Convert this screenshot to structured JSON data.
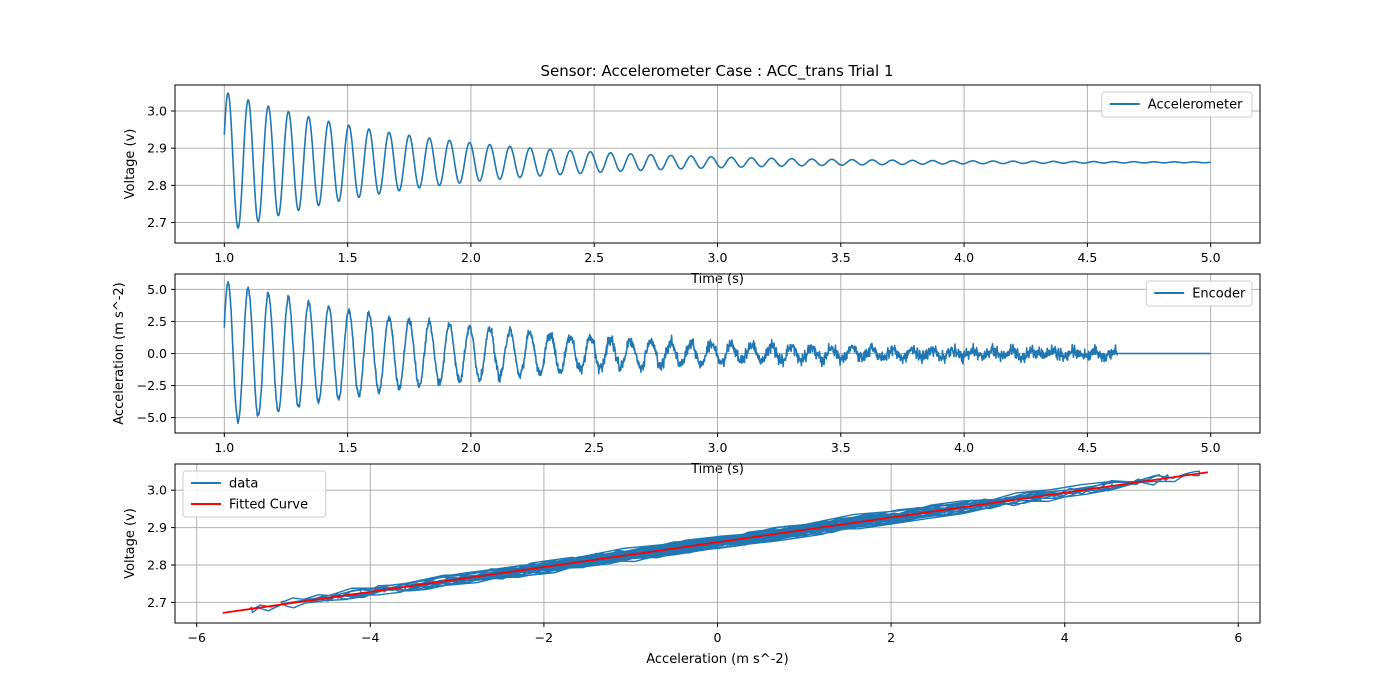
{
  "title": "Sensor: Accelerometer Case : ACC_trans Trial 1",
  "colors": {
    "series_blue": "#1f77b4",
    "fit_red": "#ff0000",
    "grid": "#b0b0b0",
    "legend_border": "#cccccc"
  },
  "chart_data": [
    {
      "type": "line",
      "title": "Sensor: Accelerometer Case : ACC_trans Trial 1",
      "xlabel": "Time (s)",
      "ylabel": "Voltage (v)",
      "xlim": [
        0.8,
        5.2
      ],
      "ylim": [
        2.645,
        3.07
      ],
      "xticks": [
        1.0,
        1.5,
        2.0,
        2.5,
        3.0,
        3.5,
        4.0,
        4.5,
        5.0
      ],
      "xtick_labels": [
        "1.0",
        "1.5",
        "2.0",
        "2.5",
        "3.0",
        "3.5",
        "4.0",
        "4.5",
        "5.0"
      ],
      "yticks": [
        2.7,
        2.8,
        2.9,
        3.0
      ],
      "ytick_labels": [
        "2.7",
        "2.8",
        "2.9",
        "3.0"
      ],
      "grid": true,
      "legend_position": "upper right",
      "series": [
        {
          "name": "Accelerometer",
          "signal": {
            "x_start": 1.0,
            "x_end": 5.0,
            "offset": 2.862,
            "amplitude": 0.19,
            "frequency_hz": 12.25,
            "decay_time_s": 0.78,
            "phase_rad": 0.4
          }
        }
      ]
    },
    {
      "type": "line",
      "xlabel": "Time (s)",
      "ylabel": "Acceleration (m s^-2)",
      "xlim": [
        0.8,
        5.2
      ],
      "ylim": [
        -6.2,
        6.2
      ],
      "xticks": [
        1.0,
        1.5,
        2.0,
        2.5,
        3.0,
        3.5,
        4.0,
        4.5,
        5.0
      ],
      "xtick_labels": [
        "1.0",
        "1.5",
        "2.0",
        "2.5",
        "3.0",
        "3.5",
        "4.0",
        "4.5",
        "5.0"
      ],
      "yticks": [
        -5.0,
        -2.5,
        0.0,
        2.5,
        5.0
      ],
      "ytick_labels": [
        "−5.0",
        "−2.5",
        "0.0",
        "2.5",
        "5.0"
      ],
      "grid": true,
      "legend_position": "upper right",
      "series": [
        {
          "name": "Encoder",
          "signal": {
            "x_start": 1.0,
            "x_end": 5.0,
            "signal_end": 4.62,
            "offset": 0.0,
            "amplitude": 5.6,
            "frequency_hz": 12.25,
            "decay_time_s": 1.0,
            "phase_rad": 0.4,
            "noise_amplitude": 0.55
          }
        }
      ]
    },
    {
      "type": "scatter",
      "xlabel": "Acceleration (m s^-2)",
      "ylabel": "Voltage (v)",
      "xlim": [
        -6.25,
        6.25
      ],
      "ylim": [
        2.645,
        3.07
      ],
      "xticks": [
        -6,
        -4,
        -2,
        0,
        2,
        4,
        6
      ],
      "xtick_labels": [
        "−6",
        "−4",
        "−2",
        "0",
        "2",
        "4",
        "6"
      ],
      "yticks": [
        2.7,
        2.8,
        2.9,
        3.0
      ],
      "ytick_labels": [
        "2.7",
        "2.8",
        "2.9",
        "3.0"
      ],
      "grid": true,
      "legend_position": "upper left",
      "series": [
        {
          "name": "data",
          "style": "line trace of voltage vs acceleration",
          "x_range": [
            -5.7,
            5.65
          ],
          "y_range": [
            2.67,
            3.05
          ]
        },
        {
          "name": "Fitted Curve",
          "style": "straight line",
          "x": [
            -5.7,
            5.65
          ],
          "y": [
            2.672,
            3.048
          ]
        }
      ]
    }
  ]
}
